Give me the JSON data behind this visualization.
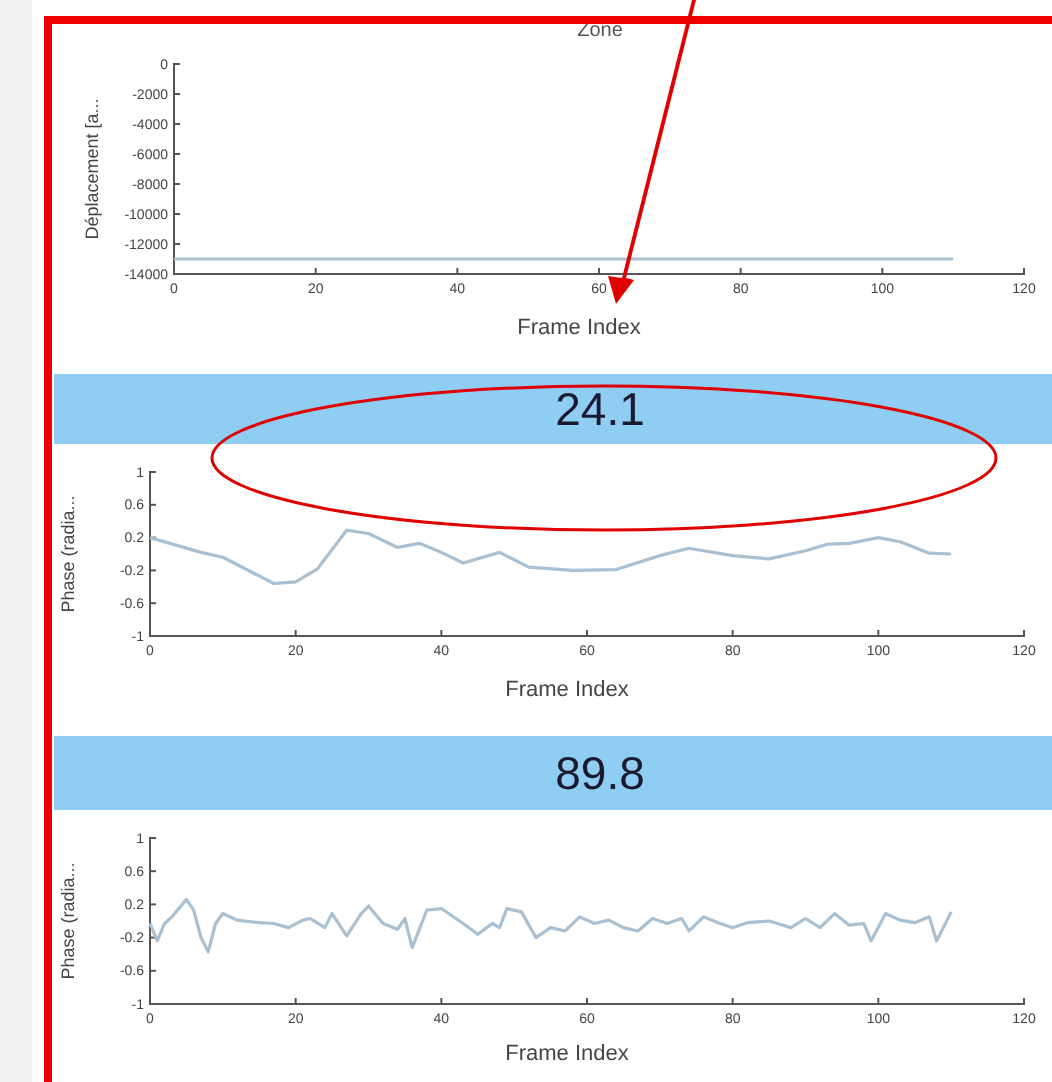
{
  "chart_data": [
    {
      "type": "line",
      "title": "Zone",
      "xlabel": "Frame Index",
      "ylabel": "Déplacement [a...",
      "x": [
        0,
        110
      ],
      "xlim": [
        0,
        120
      ],
      "xticks": [
        0,
        20,
        40,
        60,
        80,
        100,
        120
      ],
      "ylim": [
        -14000,
        0
      ],
      "yticks": [
        -14000,
        -12000,
        -10000,
        -8000,
        -6000,
        -4000,
        -2000,
        0
      ],
      "series": [
        {
          "color": "#a9bfd2",
          "values": [
            -13000,
            -13000
          ]
        }
      ]
    },
    {
      "type": "line",
      "title": "24.1",
      "xlabel": "Frame Index",
      "ylabel": "Phase (radia...",
      "xlim": [
        0,
        120
      ],
      "xticks": [
        0,
        20,
        40,
        60,
        80,
        100,
        120
      ],
      "ylim": [
        -1,
        1
      ],
      "yticks": [
        -1,
        -0.6,
        -0.2,
        0.2,
        0.6,
        1
      ],
      "x": [
        0,
        7,
        10,
        17,
        20,
        23,
        27,
        30,
        34,
        37,
        40,
        43,
        48,
        52,
        58,
        64,
        70,
        74,
        80,
        85,
        90,
        93,
        96,
        100,
        103,
        107,
        110
      ],
      "series": [
        {
          "color": "#a9bfd2",
          "values": [
            0.2,
            0.02,
            -0.04,
            -0.36,
            -0.34,
            -0.18,
            0.29,
            0.25,
            0.08,
            0.13,
            0.02,
            -0.11,
            0.02,
            -0.16,
            -0.2,
            -0.19,
            -0.02,
            0.07,
            -0.02,
            -0.06,
            0.04,
            0.12,
            0.13,
            0.2,
            0.15,
            0.01,
            0
          ]
        }
      ]
    },
    {
      "type": "line",
      "title": "89.8",
      "xlabel": "Frame Index",
      "ylabel": "Phase (radia...",
      "xlim": [
        0,
        120
      ],
      "xticks": [
        0,
        20,
        40,
        60,
        80,
        100,
        120
      ],
      "ylim": [
        -1,
        1
      ],
      "yticks": [
        -1,
        -0.6,
        -0.2,
        0.2,
        0.6,
        1
      ],
      "x": [
        0,
        1,
        2,
        3,
        5,
        6,
        7,
        8,
        9,
        10,
        12,
        15,
        17,
        19,
        21,
        22,
        24,
        25,
        27,
        29,
        30,
        32,
        34,
        35,
        36,
        38,
        40,
        43,
        45,
        47,
        48,
        49,
        51,
        53,
        55,
        57,
        59,
        61,
        63,
        65,
        67,
        69,
        71,
        73,
        74,
        76,
        78,
        80,
        82,
        85,
        88,
        90,
        92,
        94,
        96,
        98,
        99,
        101,
        103,
        105,
        107,
        108,
        110
      ],
      "series": [
        {
          "color": "#a9bfd2",
          "values": [
            -0.03,
            -0.24,
            -0.03,
            0.05,
            0.26,
            0.13,
            -0.2,
            -0.37,
            -0.03,
            0.09,
            0.01,
            -0.02,
            -0.03,
            -0.08,
            0.01,
            0.03,
            -0.08,
            0.09,
            -0.18,
            0.09,
            0.18,
            -0.03,
            -0.1,
            0.03,
            -0.32,
            0.13,
            0.15,
            -0.03,
            -0.16,
            -0.03,
            -0.08,
            0.15,
            0.11,
            -0.2,
            -0.08,
            -0.12,
            0.05,
            -0.03,
            0.01,
            -0.08,
            -0.12,
            0.03,
            -0.03,
            0.03,
            -0.12,
            0.05,
            -0.02,
            -0.08,
            -0.02,
            0,
            -0.08,
            0.03,
            -0.08,
            0.09,
            -0.05,
            -0.03,
            -0.24,
            0.09,
            0.01,
            -0.02,
            0.05,
            -0.24,
            0.11
          ]
        }
      ]
    }
  ]
}
